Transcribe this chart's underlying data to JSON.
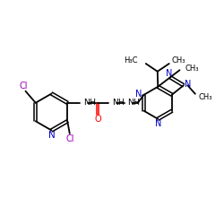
{
  "bg_color": "#ffffff",
  "bond_color": "#000000",
  "n_color": "#0000cc",
  "cl_color": "#9900bb",
  "o_color": "#ff0000",
  "figsize": [
    2.5,
    2.5
  ],
  "dpi": 100,
  "xlim": [
    0,
    10
  ],
  "ylim": [
    0,
    10
  ]
}
